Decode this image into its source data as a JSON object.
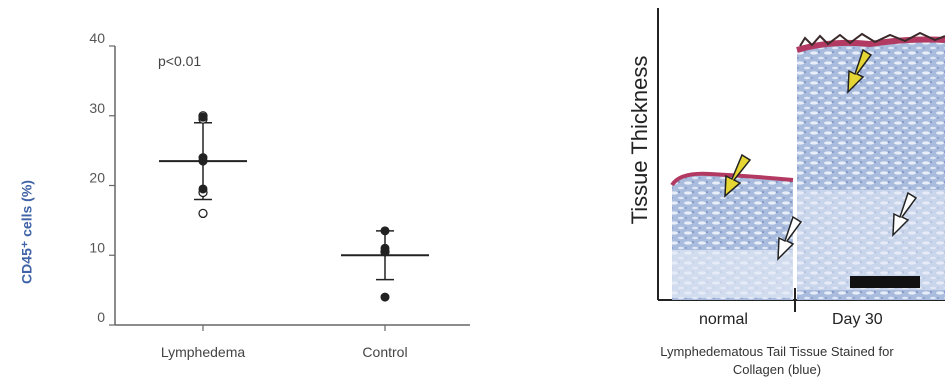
{
  "chart_data": {
    "type": "scatter",
    "ylabel": "CD45⁺ cells (%)",
    "xlabel": "",
    "ylim": [
      0,
      40
    ],
    "yticks": [
      0,
      10,
      20,
      30,
      40
    ],
    "categories": [
      "Lymphedema",
      "Control"
    ],
    "annotation": "p<0.01",
    "series": [
      {
        "points_open": [
          30,
          29.5,
          19,
          16
        ],
        "points_filled": [
          29.8,
          24,
          23.5,
          19.5
        ],
        "mean": 23.5,
        "error_upper": 29,
        "error_lower": 18
      },
      {
        "points_open": [
          10.5
        ],
        "points_filled": [
          13.5,
          11,
          10.5,
          4
        ],
        "mean": 10,
        "error_upper": 13.5,
        "error_lower": 6.5
      }
    ]
  },
  "figure_b": {
    "axis_label": "Tissue Thickness",
    "panel_left": "normal",
    "panel_right": "Day 30",
    "caption_line1": "Lymphedematous Tail Tissue Stained for",
    "caption_line2": "Collagen (blue)",
    "colors": {
      "collagen": "#8fa6d0",
      "epidermis": "#b23a62",
      "arrow_yellow": "#e6d634",
      "arrow_white": "#ffffff"
    }
  }
}
